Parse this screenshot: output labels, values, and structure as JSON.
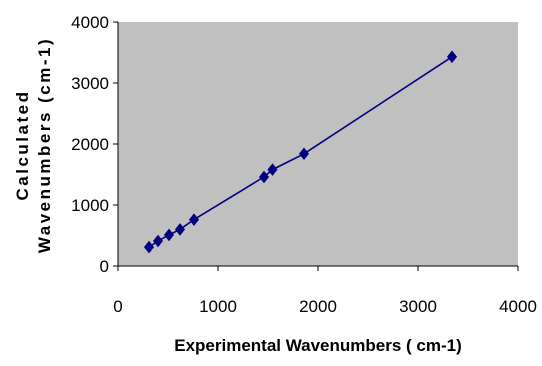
{
  "chart_data": {
    "type": "scatter",
    "title": "",
    "xlabel": "Experimental Wavenumbers ( cm-1)",
    "ylabel_lines": [
      "Calculated",
      "Wavenumbers (cm-1)"
    ],
    "xlim": [
      0,
      4000
    ],
    "ylim": [
      0,
      4000
    ],
    "x_ticks": [
      "0",
      "1000",
      "2000",
      "3000",
      "4000"
    ],
    "y_ticks": [
      "0",
      "1000",
      "2000",
      "3000",
      "4000"
    ],
    "grid": false,
    "legend": "none",
    "plot_background": "#c0c0c0",
    "series": [
      {
        "color": "#000080",
        "marker": "diamond",
        "connected": true,
        "points": [
          {
            "x": 310,
            "y": 310
          },
          {
            "x": 400,
            "y": 410
          },
          {
            "x": 510,
            "y": 510
          },
          {
            "x": 620,
            "y": 600
          },
          {
            "x": 760,
            "y": 760
          },
          {
            "x": 1460,
            "y": 1460
          },
          {
            "x": 1545,
            "y": 1580
          },
          {
            "x": 1860,
            "y": 1840
          },
          {
            "x": 3340,
            "y": 3430
          }
        ]
      }
    ]
  }
}
